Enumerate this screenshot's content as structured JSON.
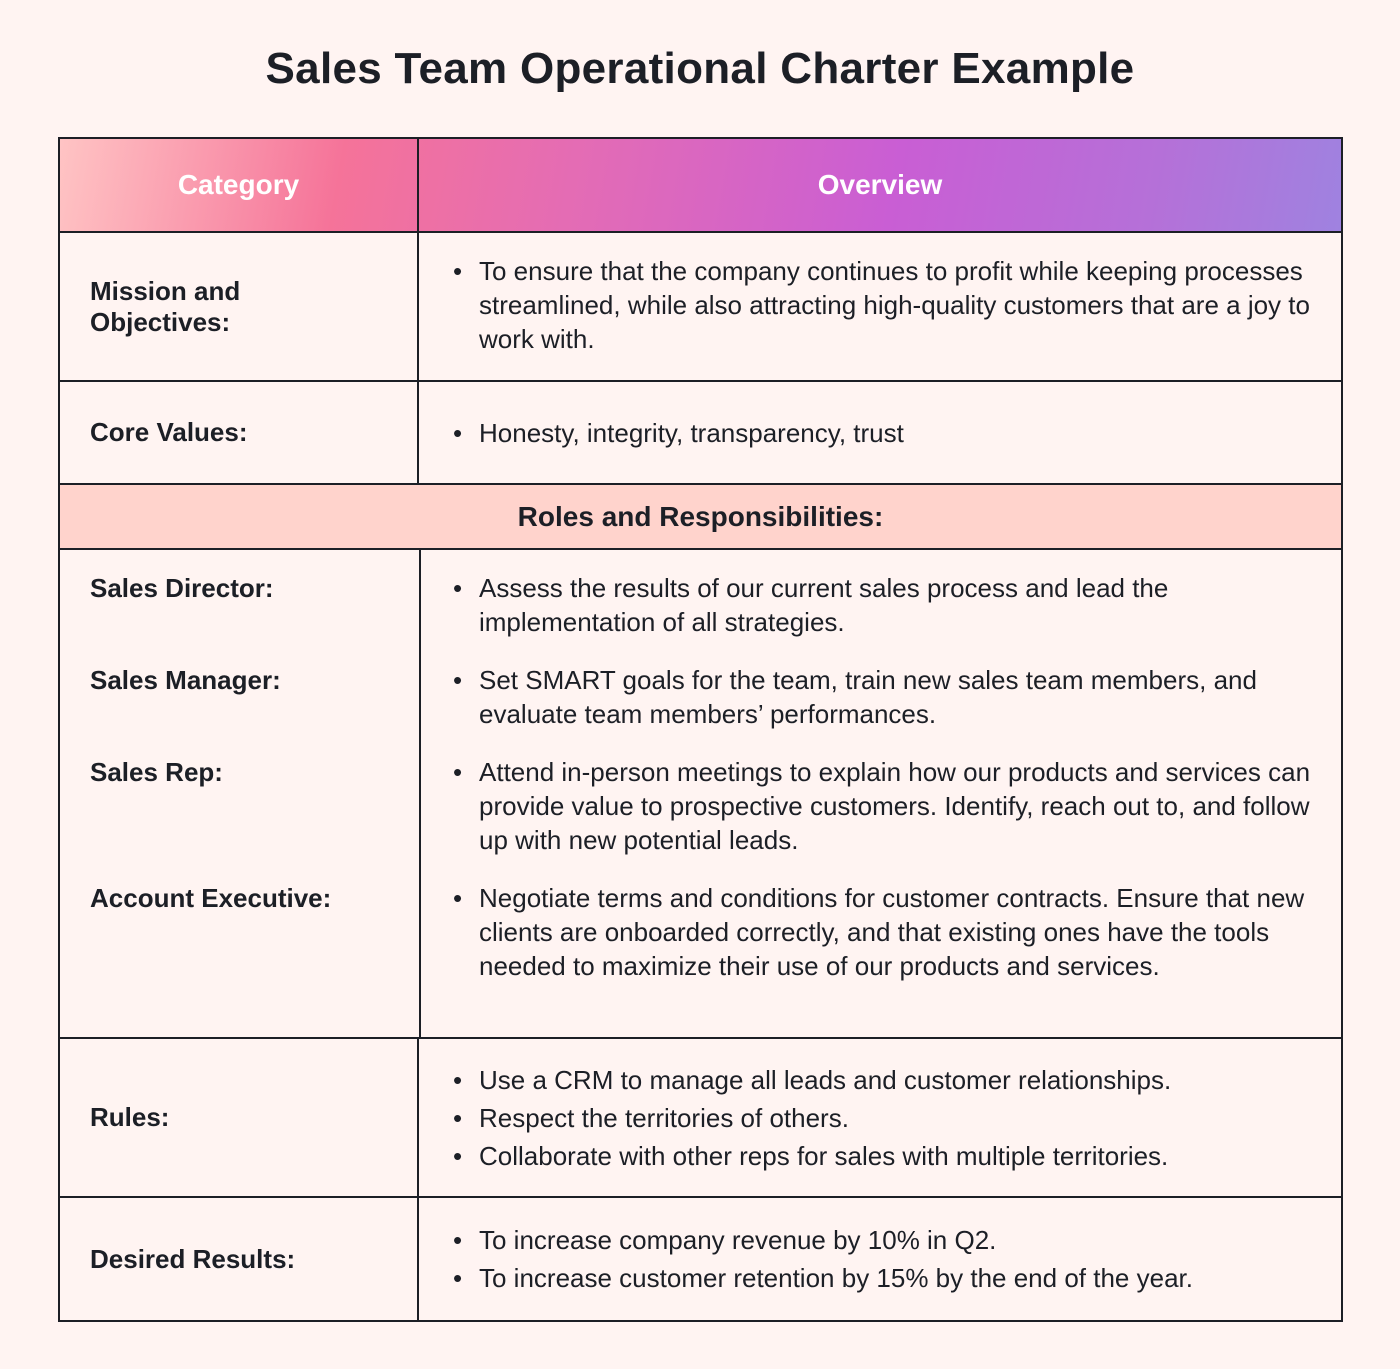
{
  "title": "Sales Team Operational Charter Example",
  "header": {
    "category": "Category",
    "overview": "Overview"
  },
  "colors": {
    "header_gradient": [
      "#ffc4c4",
      "#f57399",
      "#c95ed4",
      "#9f82e0"
    ],
    "section_bg": "#ffd3cc",
    "page_bg": "#fff4f2"
  },
  "rows": {
    "mission": {
      "label": "Mission and Objectives:",
      "items": [
        "To ensure that the company continues to profit while keeping processes streamlined, while also attracting high-quality customers that are a joy to work with."
      ]
    },
    "core": {
      "label": "Core Values:",
      "items": [
        " Honesty, integrity, transparency, trust"
      ]
    },
    "roles_title": "Roles and Responsibilities:",
    "roles": [
      {
        "label": "Sales Director:",
        "text": "Assess the results of our current sales process and lead the implementation of all strategies."
      },
      {
        "label": "Sales Manager:",
        "text": "Set SMART goals for the team, train new sales team members, and evaluate team members’ performances."
      },
      {
        "label": "Sales Rep:",
        "text": "Attend in-person meetings to explain how our products and services can provide value to prospective customers. Identify, reach out to, and follow up with new potential leads."
      },
      {
        "label": "Account Executive:",
        "text": "Negotiate terms and conditions for customer contracts. Ensure that new clients are onboarded correctly, and that existing ones have the tools needed to maximize their use of our products and services."
      }
    ],
    "rules": {
      "label": "Rules:",
      "items": [
        "Use a CRM to manage all leads and customer relationships.",
        "Respect the territories of others.",
        "Collaborate with other reps for sales with multiple territories."
      ]
    },
    "results": {
      "label": "Desired Results:",
      "items": [
        "To increase company revenue by 10% in Q2.",
        "To increase customer retention by 15% by the end of the year."
      ]
    }
  }
}
